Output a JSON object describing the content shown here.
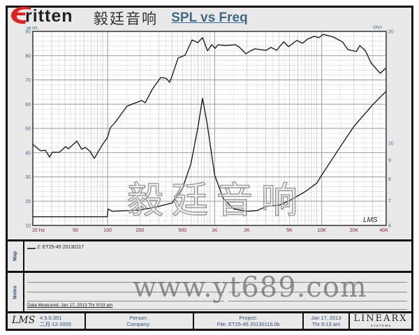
{
  "logo": {
    "word": "ritten",
    "letter": "E",
    "chinese": "毅廷音响"
  },
  "chart_data": {
    "type": "line",
    "title": "SPL vs Freq",
    "ylabel": "dB SPL",
    "y2label": "Ohm",
    "xscale": "log",
    "xlim": [
      20,
      40000
    ],
    "ylim": [
      10,
      90
    ],
    "y2scale": "log",
    "y2lim": [
      6,
      20
    ],
    "grid": true,
    "x_ticks": [
      "20 Hz",
      "50",
      "100",
      "200",
      "500",
      "1K",
      "2K",
      "5K",
      "10K",
      "20K",
      "40K"
    ],
    "x_tick_values": [
      20,
      50,
      100,
      200,
      500,
      1000,
      2000,
      5000,
      10000,
      20000,
      40000
    ],
    "y_ticks": [
      10,
      20,
      30,
      40,
      50,
      60,
      70,
      80,
      90
    ],
    "y2_ticks": [
      6,
      7,
      8,
      9,
      10,
      20
    ],
    "colors": {
      "curve": "#111111",
      "x_tick": "#8a1c3c",
      "y_tick": "#3f6a87",
      "title": "#3f6a87"
    },
    "series": [
      {
        "axis": "left",
        "x": [
          20,
          23.6,
          26.2,
          28.7,
          30.5,
          35.4,
          40.5,
          43,
          51.5,
          57.3,
          61.8,
          68.6,
          75,
          88.5,
          99.8,
          106,
          118,
          152,
          208,
          225,
          261,
          313,
          352,
          380,
          404,
          455,
          529,
          615,
          694,
          771,
          857,
          938,
          1010,
          1072,
          1245,
          1560,
          1683,
          1955,
          2203,
          2377,
          3020,
          3360,
          3790,
          4400,
          4900,
          5870,
          6610,
          7350,
          8550,
          9350,
          10400,
          12800,
          15600,
          17600,
          21100,
          22700,
          25700,
          28900,
          35200,
          40000
        ],
        "y": [
          43.4,
          40.8,
          41,
          38.2,
          40.2,
          40.2,
          42.5,
          41.6,
          44.8,
          41.4,
          42.2,
          40.5,
          37.6,
          43,
          46.3,
          50.3,
          52.6,
          59.2,
          61.5,
          60.6,
          66.1,
          71,
          70.7,
          69,
          72.2,
          79,
          80.2,
          86.5,
          85.4,
          87.4,
          82,
          84.5,
          83,
          84.5,
          84.2,
          84.5,
          83.7,
          80.8,
          82.2,
          82.8,
          82.2,
          83.4,
          82.2,
          85.7,
          83.7,
          86.3,
          85.1,
          86.8,
          88,
          87.4,
          88.8,
          87.7,
          85.7,
          82.5,
          81.7,
          84.2,
          81.9,
          77,
          72.7,
          75
        ]
      },
      {
        "axis": "right",
        "x": [
          20,
          50,
          99,
          101,
          110,
          200,
          300,
          400,
          500,
          600,
          700,
          770,
          850,
          1000,
          1200,
          1500,
          2000,
          2500,
          3000,
          4000,
          5000,
          7000,
          9000,
          10000,
          15000,
          20000,
          30000,
          40000
        ],
        "y": [
          6.33,
          6.33,
          6.33,
          6.65,
          6.55,
          6.6,
          6.75,
          6.9,
          7.55,
          8.8,
          11.1,
          13.2,
          11.3,
          8.2,
          7.1,
          6.65,
          6.55,
          6.58,
          6.75,
          6.8,
          7.0,
          7.4,
          7.8,
          8.2,
          9.8,
          11.1,
          12.7,
          13.8
        ]
      }
    ]
  },
  "plot_mark": "LMS",
  "watermarks": {
    "chinese": "毅廷音响",
    "url": "www.yt689.com"
  },
  "map": {
    "label": "Map",
    "legend": "2: ET25-45  20130117"
  },
  "notes": {
    "label": "Notes",
    "measured": "Data Measured: Jan 17, 2013  Thr  9:03 am"
  },
  "footer": {
    "logo": "LMS",
    "version": "4.5.0.351",
    "build_date": "二月-12-2005",
    "person": "Person:",
    "company": "Company:",
    "project": "Project:",
    "file": "File: ET25-45 20130116.lib",
    "date": "Jan 17, 2013",
    "time": "Thr  9:13 am",
    "brand": "LINEARX",
    "brand_sub": "S Y S T E M S"
  }
}
